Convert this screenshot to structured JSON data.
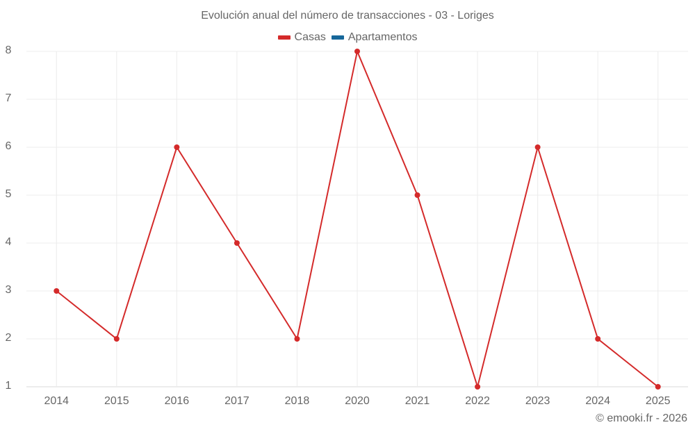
{
  "chart_data": {
    "type": "line",
    "title": "Evolución anual del número de transacciones - 03 - Loriges",
    "xlabel": "",
    "ylabel": "",
    "categories": [
      "2014",
      "2015",
      "2016",
      "2017",
      "2018",
      "2020",
      "2021",
      "2022",
      "2023",
      "2024",
      "2025"
    ],
    "series": [
      {
        "name": "Casas",
        "color": "#d42a2a",
        "values": [
          3,
          2,
          6,
          4,
          2,
          8,
          5,
          1,
          6,
          2,
          1
        ]
      },
      {
        "name": "Apartamentos",
        "color": "#16679a",
        "values": []
      }
    ],
    "ylim": [
      1,
      8
    ],
    "yticks": [
      1,
      2,
      3,
      4,
      5,
      6,
      7,
      8
    ],
    "grid": true,
    "legend_position": "top"
  },
  "header": {
    "title": "Evolución anual del número de transacciones - 03 - Loriges"
  },
  "legend": {
    "items": [
      {
        "label": "Casas",
        "color": "#d42a2a"
      },
      {
        "label": "Apartamentos",
        "color": "#16679a"
      }
    ]
  },
  "credits": "© emooki.fr - 2026"
}
